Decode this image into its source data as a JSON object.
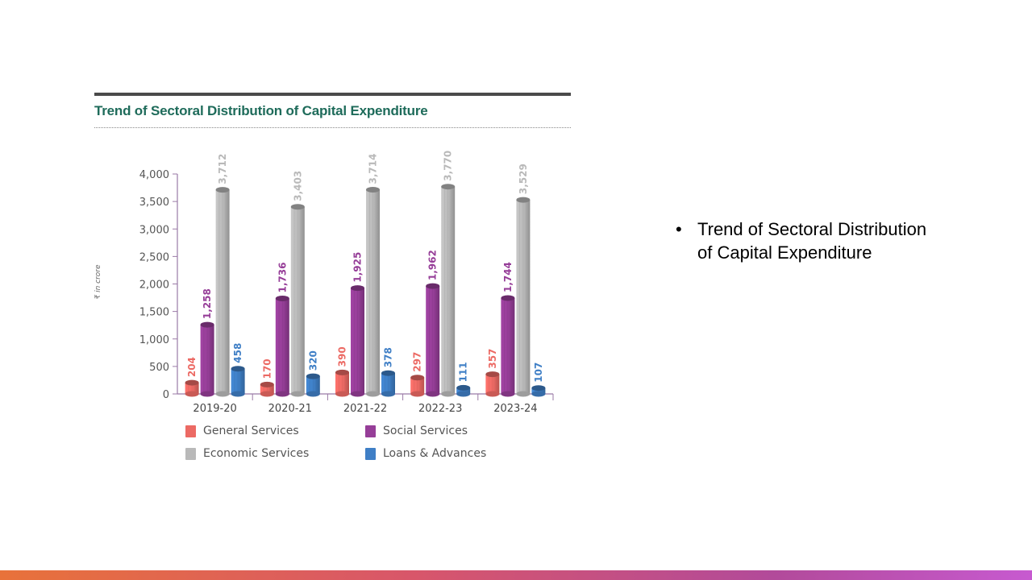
{
  "chart_data": {
    "type": "bar",
    "title": "Trend of Sectoral Distribution of Capital Expenditure",
    "ylabel": "₹ in crore",
    "xlabel": "",
    "ylim": [
      0,
      4000
    ],
    "yticks": [
      0,
      500,
      1000,
      1500,
      2000,
      2500,
      3000,
      3500,
      4000
    ],
    "ytick_labels": [
      "0",
      "500",
      "1,000",
      "1,500",
      "2,000",
      "2,500",
      "3,000",
      "3,500",
      "4,000"
    ],
    "categories": [
      "2019-20",
      "2020-21",
      "2021-22",
      "2022-23",
      "2023-24"
    ],
    "series": [
      {
        "name": "General Services",
        "color": "#ec6a64",
        "values": [
          204,
          170,
          390,
          297,
          357
        ],
        "labels": [
          "204",
          "170",
          "390",
          "297",
          "357"
        ]
      },
      {
        "name": "Social Services",
        "color": "#963e98",
        "values": [
          1258,
          1736,
          1925,
          1962,
          1744
        ],
        "labels": [
          "1,258",
          "1,736",
          "1,925",
          "1,962",
          "1,744"
        ]
      },
      {
        "name": "Economic Services",
        "color": "#b9b9b9",
        "values": [
          3712,
          3403,
          3714,
          3770,
          3529
        ],
        "labels": [
          "3,712",
          "3,403",
          "3,714",
          "3,770",
          "3,529"
        ]
      },
      {
        "name": "Loans & Advances",
        "color": "#3f7fc6",
        "values": [
          458,
          320,
          378,
          111,
          107
        ],
        "labels": [
          "458",
          "320",
          "378",
          "111",
          "107"
        ]
      }
    ],
    "legend_position": "bottom",
    "grid": false
  },
  "bullets": [
    "Trend of Sectoral Distribution of Capital Expenditure"
  ]
}
